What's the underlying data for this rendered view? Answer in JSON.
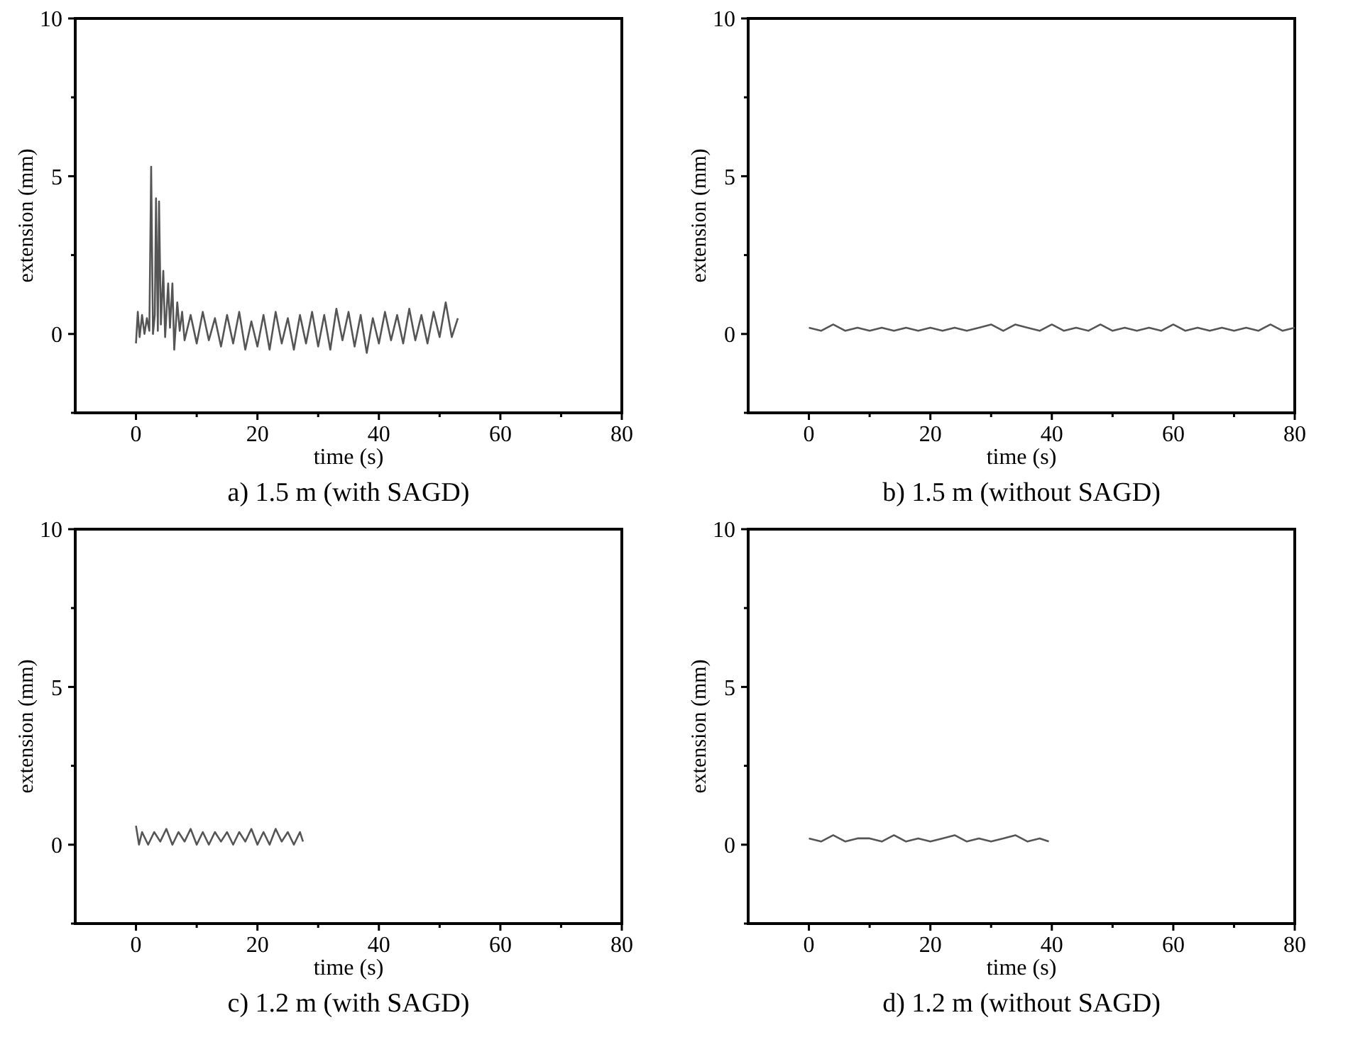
{
  "chart_data": [
    {
      "type": "line",
      "title": "a) 1.5 m (with SAGD)",
      "xlabel": "time (s)",
      "ylabel": "extension (mm)",
      "xlim": [
        -10,
        80
      ],
      "ylim": [
        -2.5,
        10
      ],
      "xticks": [
        0,
        {
          "value": 10,
          "label": null
        },
        20,
        {
          "value": 30,
          "label": null
        },
        40,
        {
          "value": 50,
          "label": null
        },
        60,
        {
          "value": 70,
          "label": null
        },
        80
      ],
      "yticks": [
        {
          "value": -2.5,
          "label": null
        },
        0,
        {
          "value": 2.5,
          "label": null
        },
        5,
        {
          "value": 7.5,
          "label": null
        },
        10
      ],
      "grid": false,
      "series": [
        {
          "color": "#555555",
          "x": [
            0,
            0.3,
            0.6,
            1,
            1.4,
            1.8,
            2.2,
            2.5,
            2.8,
            3.1,
            3.3,
            3.6,
            3.8,
            4.1,
            4.5,
            4.8,
            5.3,
            5.6,
            6,
            6.3,
            6.8,
            7.2,
            7.6,
            8,
            9,
            10,
            11,
            12,
            13,
            14,
            15,
            16,
            17,
            18,
            19,
            20,
            21,
            22,
            23,
            24,
            25,
            26,
            27,
            28,
            29,
            30,
            31,
            32,
            33,
            34,
            35,
            36,
            37,
            38,
            39,
            40,
            41,
            42,
            43,
            44,
            45,
            46,
            47,
            48,
            49,
            50,
            51,
            52,
            53
          ],
          "values": [
            -0.3,
            0.7,
            -0.1,
            0.6,
            0,
            0.5,
            0.1,
            5.3,
            0,
            0.6,
            4.3,
            0.1,
            4.2,
            0.3,
            2.0,
            -0.1,
            1.6,
            0.2,
            1.6,
            -0.5,
            1.0,
            0.1,
            0.7,
            -0.2,
            0.6,
            -0.3,
            0.7,
            -0.2,
            0.5,
            -0.4,
            0.6,
            -0.3,
            0.7,
            -0.5,
            0.4,
            -0.4,
            0.6,
            -0.5,
            0.7,
            -0.3,
            0.5,
            -0.5,
            0.6,
            -0.3,
            0.7,
            -0.4,
            0.6,
            -0.5,
            0.8,
            -0.2,
            0.7,
            -0.4,
            0.6,
            -0.6,
            0.5,
            -0.3,
            0.7,
            -0.2,
            0.6,
            -0.3,
            0.8,
            -0.2,
            0.6,
            -0.3,
            0.7,
            -0.1,
            1.0,
            -0.1,
            0.5
          ]
        }
      ]
    },
    {
      "type": "line",
      "title": "b) 1.5 m (without SAGD)",
      "xlabel": "time (s)",
      "ylabel": "extension (mm)",
      "xlim": [
        -10,
        80
      ],
      "ylim": [
        -2.5,
        10
      ],
      "xticks": [
        0,
        {
          "value": 10,
          "label": null
        },
        20,
        {
          "value": 30,
          "label": null
        },
        40,
        {
          "value": 50,
          "label": null
        },
        60,
        {
          "value": 70,
          "label": null
        },
        80
      ],
      "yticks": [
        {
          "value": -2.5,
          "label": null
        },
        0,
        {
          "value": 2.5,
          "label": null
        },
        5,
        {
          "value": 7.5,
          "label": null
        },
        10
      ],
      "grid": false,
      "series": [
        {
          "color": "#555555",
          "x": [
            0,
            2,
            4,
            6,
            8,
            10,
            12,
            14,
            16,
            18,
            20,
            22,
            24,
            26,
            28,
            30,
            32,
            34,
            36,
            38,
            40,
            42,
            44,
            46,
            48,
            50,
            52,
            54,
            56,
            58,
            60,
            62,
            64,
            66,
            68,
            70,
            72,
            74,
            76,
            78,
            80
          ],
          "values": [
            0.2,
            0.1,
            0.3,
            0.1,
            0.2,
            0.1,
            0.2,
            0.1,
            0.2,
            0.1,
            0.2,
            0.1,
            0.2,
            0.1,
            0.2,
            0.3,
            0.1,
            0.3,
            0.2,
            0.1,
            0.3,
            0.1,
            0.2,
            0.1,
            0.3,
            0.1,
            0.2,
            0.1,
            0.2,
            0.1,
            0.3,
            0.1,
            0.2,
            0.1,
            0.2,
            0.1,
            0.2,
            0.1,
            0.3,
            0.1,
            0.2
          ]
        }
      ]
    },
    {
      "type": "line",
      "title": "c) 1.2 m (with SAGD)",
      "xlabel": "time (s)",
      "ylabel": "extension (mm)",
      "xlim": [
        -10,
        80
      ],
      "ylim": [
        -2.5,
        10
      ],
      "xticks": [
        0,
        {
          "value": 10,
          "label": null
        },
        20,
        {
          "value": 30,
          "label": null
        },
        40,
        {
          "value": 50,
          "label": null
        },
        60,
        {
          "value": 70,
          "label": null
        },
        80
      ],
      "yticks": [
        {
          "value": -2.5,
          "label": null
        },
        0,
        {
          "value": 2.5,
          "label": null
        },
        5,
        {
          "value": 7.5,
          "label": null
        },
        10
      ],
      "grid": false,
      "series": [
        {
          "color": "#555555",
          "x": [
            0,
            0.5,
            1,
            2,
            3,
            4,
            5,
            6,
            7,
            8,
            9,
            10,
            11,
            12,
            13,
            14,
            15,
            16,
            17,
            18,
            19,
            20,
            21,
            22,
            23,
            24,
            25,
            26,
            27,
            27.5
          ],
          "values": [
            0.6,
            0,
            0.4,
            0,
            0.4,
            0.1,
            0.5,
            0,
            0.4,
            0.1,
            0.5,
            0,
            0.4,
            0,
            0.4,
            0.1,
            0.4,
            0,
            0.4,
            0.1,
            0.5,
            0,
            0.4,
            0,
            0.5,
            0.1,
            0.4,
            0,
            0.4,
            0.1
          ]
        }
      ]
    },
    {
      "type": "line",
      "title": "d) 1.2 m (without SAGD)",
      "xlabel": "time (s)",
      "ylabel": "extension (mm)",
      "xlim": [
        -10,
        80
      ],
      "ylim": [
        -2.5,
        10
      ],
      "xticks": [
        0,
        {
          "value": 10,
          "label": null
        },
        20,
        {
          "value": 30,
          "label": null
        },
        40,
        {
          "value": 50,
          "label": null
        },
        60,
        {
          "value": 70,
          "label": null
        },
        80
      ],
      "yticks": [
        {
          "value": -2.5,
          "label": null
        },
        0,
        {
          "value": 2.5,
          "label": null
        },
        5,
        {
          "value": 7.5,
          "label": null
        },
        10
      ],
      "grid": false,
      "series": [
        {
          "color": "#555555",
          "x": [
            0,
            2,
            4,
            6,
            8,
            10,
            12,
            14,
            16,
            18,
            20,
            22,
            24,
            26,
            28,
            30,
            32,
            34,
            36,
            38,
            39.5
          ],
          "values": [
            0.2,
            0.1,
            0.3,
            0.1,
            0.2,
            0.2,
            0.1,
            0.3,
            0.1,
            0.2,
            0.1,
            0.2,
            0.3,
            0.1,
            0.2,
            0.1,
            0.2,
            0.3,
            0.1,
            0.2,
            0.1
          ]
        }
      ]
    }
  ]
}
